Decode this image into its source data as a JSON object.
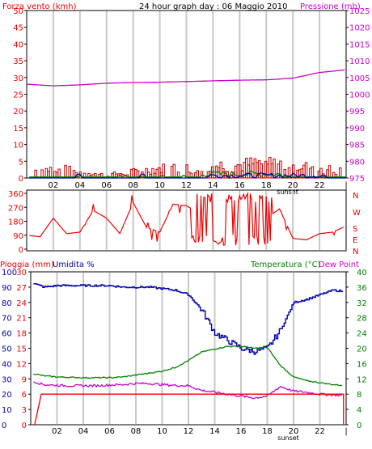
{
  "header": {
    "title": "24 hour graph day : 06 Maggio 2010",
    "left_label": "Forza vento (kmh)",
    "right_label": "Pressione (mb)"
  },
  "colors": {
    "wind": "#ff0000",
    "gust_fill": "#cc0000",
    "pressure": "#cc00cc",
    "humidity": "#0000b0",
    "temperature": "#008000",
    "dew": "#cc00cc",
    "rain": "#ee0000",
    "direction": "#ee0000",
    "grid": "#c8c8c8"
  },
  "chart_data": [
    {
      "type": "line",
      "name": "wind-pressure",
      "title": "24 hour graph day : 06 Maggio 2010",
      "ylabel": "Forza vento (kmh)",
      "y2label": "Pressione (mb)",
      "ylim": [
        0,
        50
      ],
      "y2lim": [
        975,
        1025
      ],
      "yticks": [
        "0",
        "5",
        "10",
        "15",
        "20",
        "25",
        "30",
        "35",
        "40",
        "45",
        "50"
      ],
      "y2ticks": [
        "975",
        "980",
        "985",
        "990",
        "995",
        "1000",
        "1005",
        "1010",
        "1015",
        "1020",
        "1025"
      ],
      "xticks": [
        "02",
        "04",
        "06",
        "08",
        "10",
        "12",
        "14",
        "16",
        "18",
        "20",
        "22"
      ],
      "sunset_label": "sunset",
      "x": [
        0,
        2,
        4,
        6,
        8,
        10,
        12,
        14,
        16,
        18,
        20,
        22,
        24
      ],
      "series": [
        {
          "name": "Pressione (mb)",
          "axis": "y2",
          "values": [
            1003.0,
            1002.5,
            1002.8,
            1003.3,
            1003.5,
            1003.6,
            1003.8,
            1004.0,
            1004.2,
            1004.3,
            1004.8,
            1006.5,
            1007.3
          ]
        },
        {
          "name": "Forza vento (kmh)",
          "axis": "y",
          "values": [
            2,
            3,
            2,
            1,
            2,
            3,
            3,
            4,
            4,
            5,
            4,
            3,
            2
          ]
        }
      ]
    },
    {
      "type": "line",
      "name": "wind-direction",
      "yticks": [
        "0",
        "90",
        "180",
        "270",
        "360"
      ],
      "ylim": [
        0,
        360
      ],
      "compass": [
        "N",
        "W",
        "S",
        "E",
        "N"
      ],
      "xticks": [
        "02",
        "04",
        "06",
        "08",
        "10",
        "12",
        "14",
        "16",
        "18",
        "20",
        "22"
      ],
      "sunset_label": "sunset",
      "x": [
        0,
        1,
        2,
        3,
        4,
        5,
        6,
        7,
        8,
        9,
        10,
        11,
        12,
        13,
        14,
        15,
        16,
        17,
        18,
        19,
        20,
        21,
        22,
        23,
        24
      ],
      "values": [
        90,
        80,
        200,
        100,
        110,
        250,
        200,
        100,
        300,
        140,
        110,
        290,
        280,
        230,
        170,
        190,
        180,
        170,
        200,
        260,
        70,
        60,
        100,
        110,
        150
      ]
    },
    {
      "type": "line",
      "name": "temp-humidity",
      "ylabel": "Pioggia (mm)",
      "ylabel2": "Umidita %",
      "y2label": "Temperatura (°C)",
      "y3label": "Dew Point",
      "ylim": [
        0,
        100
      ],
      "y2lim": [
        0,
        40
      ],
      "rain_ticks": [
        "0",
        "3",
        "6",
        "9",
        "12",
        "15",
        "18",
        "21",
        "24",
        "27",
        "30"
      ],
      "hum_ticks": [
        "0",
        "10",
        "20",
        "30",
        "40",
        "50",
        "60",
        "70",
        "80",
        "90",
        "100"
      ],
      "temp_ticks": [
        "0",
        "4",
        "8",
        "12",
        "16",
        "20",
        "24",
        "28",
        "32",
        "36",
        "40"
      ],
      "xticks": [
        "02",
        "04",
        "06",
        "08",
        "10",
        "12",
        "14",
        "16",
        "18",
        "20",
        "22"
      ],
      "sunset_label": "sunset",
      "x": [
        0,
        1,
        2,
        3,
        4,
        5,
        6,
        7,
        8,
        9,
        10,
        11,
        12,
        13,
        14,
        15,
        16,
        17,
        18,
        19,
        20,
        21,
        22,
        23,
        24
      ],
      "series": [
        {
          "name": "Umidita %",
          "values": [
            93,
            90,
            91,
            91,
            91,
            91,
            91,
            90,
            90,
            90,
            89,
            88,
            85,
            75,
            60,
            55,
            50,
            48,
            50,
            62,
            80,
            82,
            85,
            88,
            87
          ]
        },
        {
          "name": "Temperatura (°C)",
          "values": [
            13.5,
            12.8,
            12.5,
            12.4,
            12.3,
            12.3,
            12.3,
            12.5,
            13.0,
            13.5,
            14.0,
            15.0,
            16.8,
            19.0,
            19.8,
            20.5,
            20.5,
            20.0,
            20.2,
            15.5,
            12.5,
            11.5,
            11.0,
            10.5,
            10.2
          ]
        },
        {
          "name": "Dew Point",
          "values": [
            11.5,
            10.5,
            10.3,
            10.2,
            10.2,
            10.2,
            10.4,
            10.5,
            10.8,
            10.8,
            10.5,
            10.3,
            10.2,
            9.0,
            8.5,
            8.0,
            7.5,
            7.0,
            7.5,
            10.0,
            8.8,
            8.5,
            8.0,
            7.8,
            7.6
          ]
        },
        {
          "name": "Pioggia (mm)",
          "axis": "rain",
          "values": [
            0,
            6,
            6,
            6,
            6,
            6,
            6,
            6,
            6,
            6,
            6,
            6,
            6,
            6,
            6,
            6,
            6,
            6,
            6,
            6,
            6,
            6,
            6,
            6,
            0
          ]
        }
      ]
    }
  ]
}
